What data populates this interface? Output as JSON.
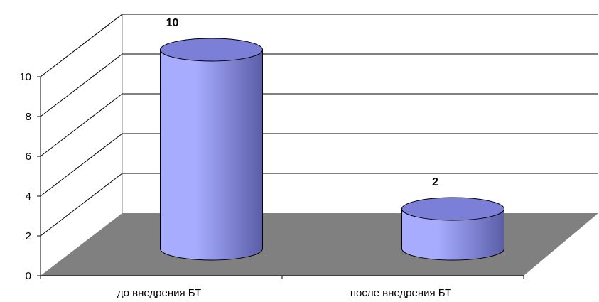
{
  "chart_data": {
    "type": "bar",
    "style": "3d-cylinder",
    "title": "",
    "xlabel": "",
    "ylabel": "",
    "categories": [
      "до внедрения БТ",
      "после внедрения БТ"
    ],
    "values": [
      10,
      2
    ],
    "data_labels": [
      "10",
      "2"
    ],
    "ylim": [
      0,
      10
    ],
    "yticks": [
      0,
      2,
      4,
      6,
      8,
      10
    ],
    "ytick_labels": [
      "0",
      "2",
      "4",
      "6",
      "8",
      "10"
    ],
    "grid": true,
    "legend": "none",
    "colors": {
      "bar_light": "#a8acff",
      "bar_dark": "#5a5ea8",
      "bar_top": "#7b7fd8",
      "floor": "#808080",
      "outline": "#000000",
      "grid": "#000000"
    }
  }
}
